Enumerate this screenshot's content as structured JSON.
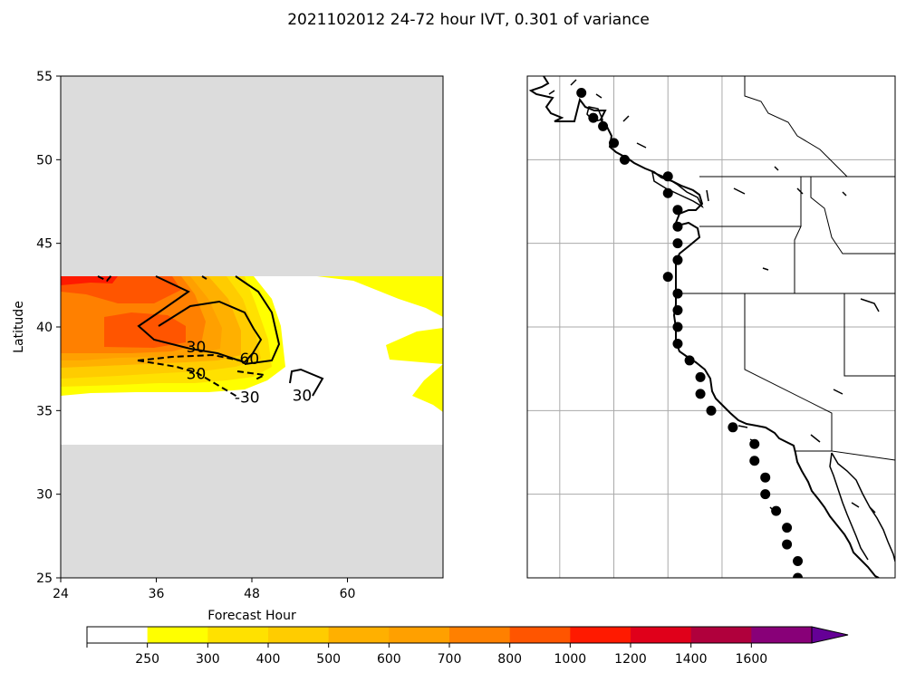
{
  "title": "2021102012 24-72 hour IVT, 0.301 of variance",
  "chart_data": [
    {
      "type": "contour",
      "xlabel": "Forecast Hour",
      "ylabel": "Latitude",
      "xlim": [
        24,
        72
      ],
      "ylim": [
        25,
        55
      ],
      "xticks": [
        24,
        36,
        48,
        60
      ],
      "yticks": [
        25,
        30,
        35,
        40,
        45,
        50,
        55
      ],
      "valid_lat_range": [
        33,
        43
      ],
      "missing_color": "#dcdcdc",
      "contour_labels": [
        {
          "text": "30",
          "hour": 41.0,
          "lat": 38.8
        },
        {
          "text": "60",
          "hour": 47.7,
          "lat": 38.1
        },
        {
          "text": "30",
          "hour": 41.0,
          "lat": 37.2
        },
        {
          "text": "-30",
          "hour": 47.4,
          "lat": 35.8
        },
        {
          "text": "30",
          "hour": 54.3,
          "lat": 35.9
        }
      ]
    },
    {
      "type": "map",
      "region": "West coast of North America",
      "lon_range": [
        -138,
        -104
      ],
      "lat_range": [
        25,
        55
      ],
      "gridline_lons": [
        -135,
        -130,
        -125,
        -120
      ],
      "gridline_lats": [
        30,
        35,
        40,
        45,
        50
      ],
      "points": [
        {
          "lon": -133.0,
          "lat": 54.0
        },
        {
          "lon": -131.9,
          "lat": 52.5
        },
        {
          "lon": -131.0,
          "lat": 52.0
        },
        {
          "lon": -130.0,
          "lat": 51.0
        },
        {
          "lon": -129.0,
          "lat": 50.0
        },
        {
          "lon": -125.0,
          "lat": 49.0
        },
        {
          "lon": -125.0,
          "lat": 48.0
        },
        {
          "lon": -124.1,
          "lat": 47.0
        },
        {
          "lon": -124.1,
          "lat": 46.0
        },
        {
          "lon": -124.1,
          "lat": 45.0
        },
        {
          "lon": -124.1,
          "lat": 44.0
        },
        {
          "lon": -125.0,
          "lat": 43.0
        },
        {
          "lon": -124.1,
          "lat": 42.0
        },
        {
          "lon": -124.1,
          "lat": 41.0
        },
        {
          "lon": -124.1,
          "lat": 40.0
        },
        {
          "lon": -124.1,
          "lat": 39.0
        },
        {
          "lon": -123.0,
          "lat": 38.0
        },
        {
          "lon": -122.0,
          "lat": 37.0
        },
        {
          "lon": -122.0,
          "lat": 36.0
        },
        {
          "lon": -121.0,
          "lat": 35.0
        },
        {
          "lon": -119.0,
          "lat": 34.0
        },
        {
          "lon": -117.0,
          "lat": 33.0
        },
        {
          "lon": -117.0,
          "lat": 32.0
        },
        {
          "lon": -116.0,
          "lat": 31.0
        },
        {
          "lon": -116.0,
          "lat": 30.0
        },
        {
          "lon": -115.0,
          "lat": 29.0
        },
        {
          "lon": -114.0,
          "lat": 28.0
        },
        {
          "lon": -114.0,
          "lat": 27.0
        },
        {
          "lon": -113.0,
          "lat": 26.0
        },
        {
          "lon": -113.0,
          "lat": 25.0
        }
      ]
    }
  ],
  "colorbar": {
    "tick_labels": [
      "250",
      "300",
      "400",
      "500",
      "600",
      "700",
      "800",
      "1000",
      "1200",
      "1400",
      "1600"
    ],
    "colors": [
      "#ffffff",
      "#ffff00",
      "#ffe100",
      "#ffcc00",
      "#ffb000",
      "#ffa000",
      "#ff8000",
      "#ff5500",
      "#ff1a00",
      "#e0001a",
      "#b0003c",
      "#880078",
      "#650096"
    ]
  }
}
